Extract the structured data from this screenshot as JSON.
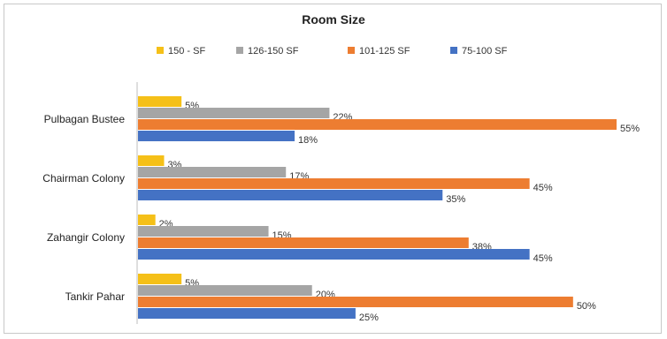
{
  "chart_data": {
    "type": "bar",
    "orientation": "horizontal",
    "title": "Room Size",
    "xlabel": "",
    "ylabel": "",
    "xlim": [
      0,
      60
    ],
    "grid": false,
    "legend_position": "top",
    "categories": [
      "Pulbagan Bustee",
      "Chairman Colony",
      "Zahangir Colony",
      "Tankir Pahar"
    ],
    "series": [
      {
        "name": "150 - SF",
        "color": "#F5C018",
        "values": [
          5,
          3,
          2,
          5
        ],
        "labels": [
          "5%",
          "3%",
          "2%",
          "5%"
        ]
      },
      {
        "name": "126-150 SF",
        "color": "#A5A5A5",
        "values": [
          22,
          17,
          15,
          20
        ],
        "labels": [
          "22%",
          "17%",
          "15%",
          "20%"
        ]
      },
      {
        "name": "101-125 SF",
        "color": "#ED7D31",
        "values": [
          55,
          45,
          38,
          50
        ],
        "labels": [
          "55%",
          "45%",
          "38%",
          "50%"
        ]
      },
      {
        "name": "75-100 SF",
        "color": "#4472C4",
        "values": [
          18,
          35,
          45,
          25
        ],
        "labels": [
          "18%",
          "35%",
          "45%",
          "25%"
        ]
      }
    ]
  }
}
